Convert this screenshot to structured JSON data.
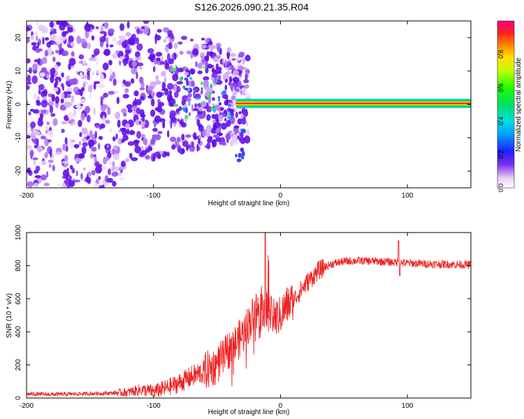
{
  "title": "S126.2026.090.21.35.R04",
  "colors": {
    "line": "#ee2222",
    "frame": "#000000"
  },
  "chart_data": [
    {
      "type": "heatmap",
      "xlabel": "Height of straight line (km)",
      "ylabel": "Frequency (Hz)",
      "xlim": [
        -200,
        150
      ],
      "ylim": [
        -25,
        25
      ],
      "xticks": [
        -200,
        -100,
        0,
        100
      ],
      "xtick_labels": [
        "-200",
        "-100",
        "0",
        "100"
      ],
      "yticks": [
        -20,
        -10,
        0,
        10,
        20
      ],
      "ytick_labels": [
        "-20",
        "-10",
        "0",
        "10",
        "20"
      ],
      "colorbar": {
        "label": "Normalized spectral amplitude",
        "range": [
          0,
          1
        ],
        "ticks": [
          0.0,
          0.2,
          0.4,
          0.6,
          0.8
        ],
        "tick_labels": [
          "0.0",
          "0.2",
          "0.4",
          "0.6",
          "0.8"
        ]
      },
      "features": {
        "carrier_line": {
          "frequency_hz": 0.3,
          "x_start_km": -35,
          "x_end_km": 150,
          "peak_amplitude": 0.95
        },
        "noise_region": {
          "x_start_km": -200,
          "x_end_km": -30,
          "typical_amplitude": 0.25
        }
      }
    },
    {
      "type": "line",
      "xlabel": "Height of straight line (km)",
      "ylabel": "SNR (10 * v/v)",
      "xlim": [
        -200,
        150
      ],
      "ylim": [
        0,
        1000
      ],
      "xticks": [
        -200,
        -100,
        0,
        100
      ],
      "xtick_labels": [
        "-200",
        "-100",
        "0",
        "100"
      ],
      "yticks": [
        0,
        200,
        400,
        600,
        800,
        1000
      ],
      "ytick_labels": [
        "0",
        "200",
        "400",
        "600",
        "800",
        "1000"
      ],
      "series": [
        {
          "name": "SNR",
          "x": [
            -200,
            -180,
            -160,
            -140,
            -120,
            -110,
            -100,
            -90,
            -80,
            -70,
            -60,
            -50,
            -45,
            -40,
            -35,
            -30,
            -25,
            -20,
            -15,
            -10,
            -5,
            0,
            5,
            10,
            15,
            20,
            25,
            30,
            40,
            50,
            60,
            80,
            100,
            120,
            150
          ],
          "values": [
            25,
            22,
            25,
            28,
            35,
            50,
            40,
            60,
            90,
            130,
            160,
            200,
            240,
            300,
            330,
            380,
            450,
            520,
            560,
            520,
            480,
            500,
            560,
            590,
            640,
            690,
            730,
            770,
            810,
            825,
            830,
            825,
            815,
            810,
            805
          ]
        }
      ],
      "annotations": [
        {
          "x": -12,
          "y": 1020,
          "text": ""
        },
        {
          "x": 93,
          "y": 950,
          "text": ""
        }
      ]
    }
  ]
}
